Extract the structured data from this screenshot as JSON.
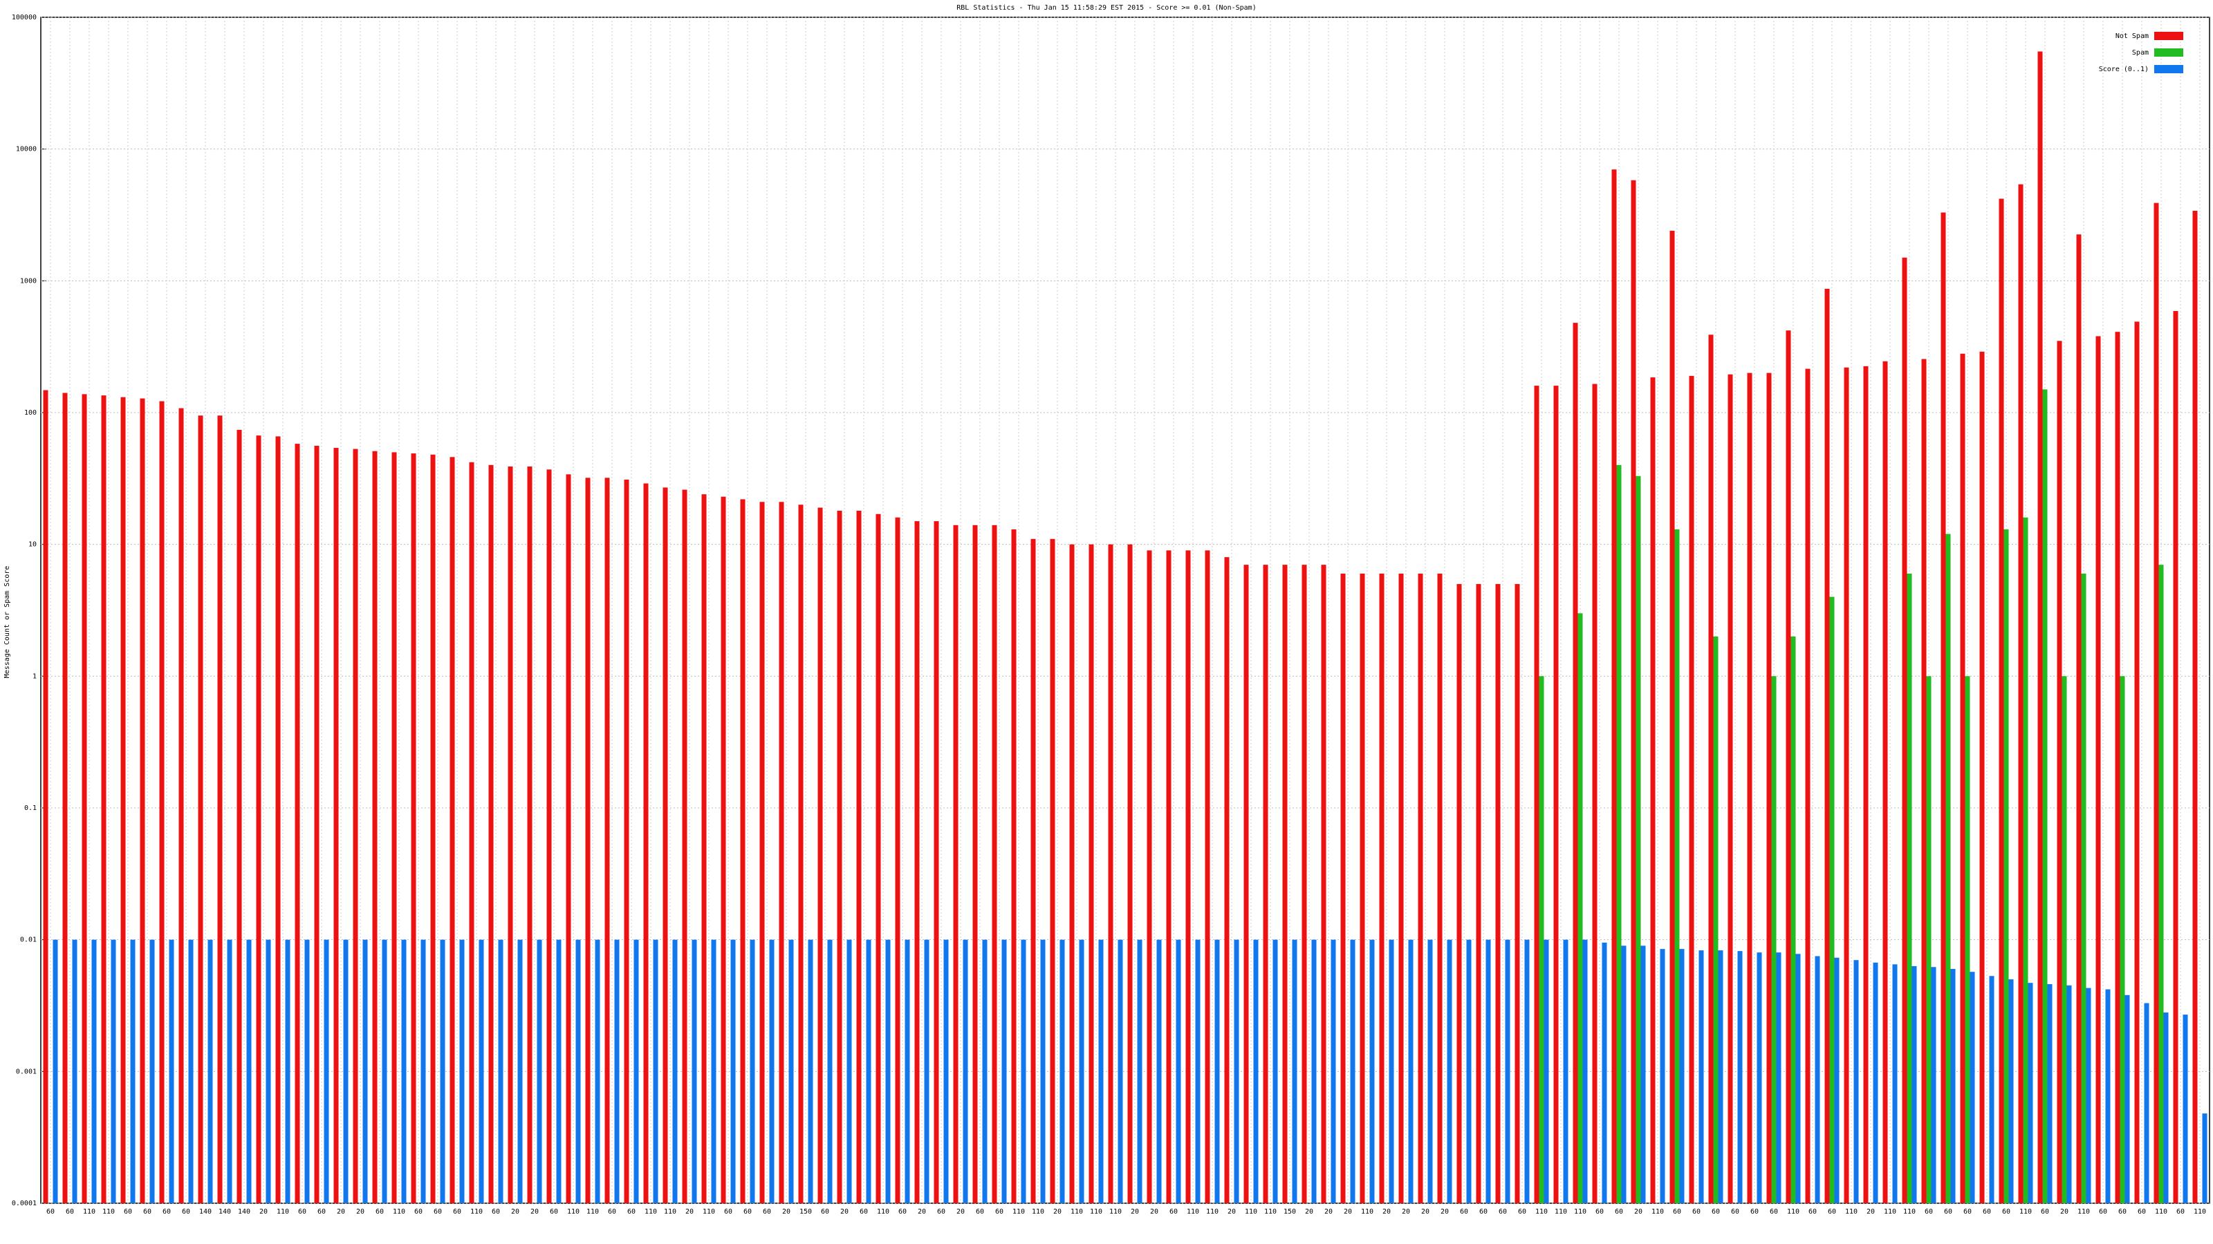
{
  "chart_data": {
    "type": "bar",
    "title": "RBL Statistics - Thu Jan 15 11:58:29 EST 2015 - Score >= 0.01 (Non-Spam)",
    "y_label": "Message Count or Spam Score",
    "log_scale": true,
    "grid": true,
    "legend": "upper right",
    "ylim": [
      0.0001,
      100000
    ],
    "yticks": [
      0.0001,
      0.001,
      0.01,
      0.1,
      1,
      10,
      100,
      1000,
      10000,
      100000
    ],
    "categories": [
      "60",
      "60",
      "110",
      "110",
      "60",
      "60",
      "60",
      "60",
      "140",
      "140",
      "140",
      "20",
      "110",
      "60",
      "60",
      "20",
      "20",
      "60",
      "110",
      "60",
      "60",
      "60",
      "110",
      "60",
      "20",
      "20",
      "60",
      "110",
      "110",
      "60",
      "60",
      "110",
      "110",
      "20",
      "110",
      "60",
      "60",
      "60",
      "20",
      "150",
      "60",
      "20",
      "60",
      "110",
      "60",
      "20",
      "60",
      "20",
      "60",
      "60",
      "110",
      "110",
      "20",
      "110",
      "110",
      "110",
      "20",
      "20",
      "60",
      "110",
      "110",
      "20",
      "110",
      "110",
      "150",
      "20",
      "20",
      "20",
      "110",
      "20",
      "20",
      "20",
      "20",
      "60",
      "60",
      "60",
      "60",
      "110",
      "110",
      "110",
      "60",
      "60",
      "20",
      "110",
      "60",
      "60",
      "60",
      "60",
      "60",
      "60",
      "110",
      "60",
      "60",
      "110",
      "20",
      "110",
      "110",
      "60",
      "60",
      "60",
      "60",
      "60",
      "110",
      "60",
      "20",
      "110",
      "60",
      "60",
      "60",
      "110",
      "60",
      "110"
    ],
    "series": [
      {
        "name": "Not Spam",
        "color": "#ee1111",
        "values": [
          148,
          141,
          138,
          135,
          131,
          128,
          122,
          108,
          95,
          95,
          74,
          67,
          66,
          58,
          56,
          54,
          53,
          51,
          50,
          49,
          48,
          46,
          42,
          40,
          39,
          39,
          37,
          34,
          32,
          32,
          31,
          29,
          27,
          26,
          24,
          23,
          22,
          21,
          21,
          20,
          19,
          18,
          18,
          17,
          16,
          15,
          15,
          14,
          14,
          14,
          13,
          11,
          11,
          10,
          10,
          10,
          10,
          9,
          9,
          9,
          9,
          8,
          7,
          7,
          7,
          7,
          7,
          6,
          6,
          6,
          6,
          6,
          6,
          5,
          5,
          5,
          5,
          160,
          160,
          480,
          165,
          7000,
          5800,
          185,
          2400,
          190,
          390,
          195,
          200,
          200,
          420,
          215,
          870,
          220,
          225,
          245,
          1500,
          255,
          3300,
          280,
          290,
          4200,
          5400,
          55000,
          350,
          2250,
          380,
          410,
          490,
          3900,
          590,
          3400
        ]
      },
      {
        "name": "Spam",
        "color": "#22bb22",
        "values": [
          null,
          null,
          null,
          null,
          null,
          null,
          null,
          null,
          null,
          null,
          null,
          null,
          null,
          null,
          null,
          null,
          null,
          null,
          null,
          null,
          null,
          null,
          null,
          null,
          null,
          null,
          null,
          null,
          null,
          null,
          null,
          null,
          null,
          null,
          null,
          null,
          null,
          null,
          null,
          null,
          null,
          null,
          null,
          null,
          null,
          null,
          null,
          null,
          null,
          null,
          null,
          null,
          null,
          null,
          null,
          null,
          null,
          null,
          null,
          null,
          null,
          null,
          null,
          null,
          null,
          null,
          null,
          null,
          null,
          null,
          null,
          null,
          null,
          null,
          null,
          null,
          null,
          1,
          null,
          3,
          null,
          40,
          33,
          null,
          13,
          null,
          2,
          null,
          null,
          1,
          2,
          null,
          4,
          null,
          null,
          null,
          6,
          1,
          12,
          1,
          null,
          13,
          16,
          150,
          1,
          6,
          null,
          1,
          null,
          7,
          null,
          null
        ]
      },
      {
        "name": "Score (0..1)",
        "color": "#1177ee",
        "values": [
          0.01,
          0.01,
          0.01,
          0.01,
          0.01,
          0.01,
          0.01,
          0.01,
          0.01,
          0.01,
          0.01,
          0.01,
          0.01,
          0.01,
          0.01,
          0.01,
          0.01,
          0.01,
          0.01,
          0.01,
          0.01,
          0.01,
          0.01,
          0.01,
          0.01,
          0.01,
          0.01,
          0.01,
          0.01,
          0.01,
          0.01,
          0.01,
          0.01,
          0.01,
          0.01,
          0.01,
          0.01,
          0.01,
          0.01,
          0.01,
          0.01,
          0.01,
          0.01,
          0.01,
          0.01,
          0.01,
          0.01,
          0.01,
          0.01,
          0.01,
          0.01,
          0.01,
          0.01,
          0.01,
          0.01,
          0.01,
          0.01,
          0.01,
          0.01,
          0.01,
          0.01,
          0.01,
          0.01,
          0.01,
          0.01,
          0.01,
          0.01,
          0.01,
          0.01,
          0.01,
          0.01,
          0.01,
          0.01,
          0.01,
          0.01,
          0.01,
          0.01,
          0.01,
          0.01,
          0.01,
          0.0095,
          0.009,
          0.009,
          0.0085,
          0.0085,
          0.0083,
          0.0083,
          0.0082,
          0.008,
          0.008,
          0.0078,
          0.0075,
          0.0073,
          0.007,
          0.0067,
          0.0065,
          0.0063,
          0.0062,
          0.006,
          0.0057,
          0.0053,
          0.005,
          0.0047,
          0.0046,
          0.0045,
          0.0043,
          0.0042,
          0.0038,
          0.0033,
          0.0028,
          0.0027,
          0.00048
        ]
      }
    ]
  }
}
